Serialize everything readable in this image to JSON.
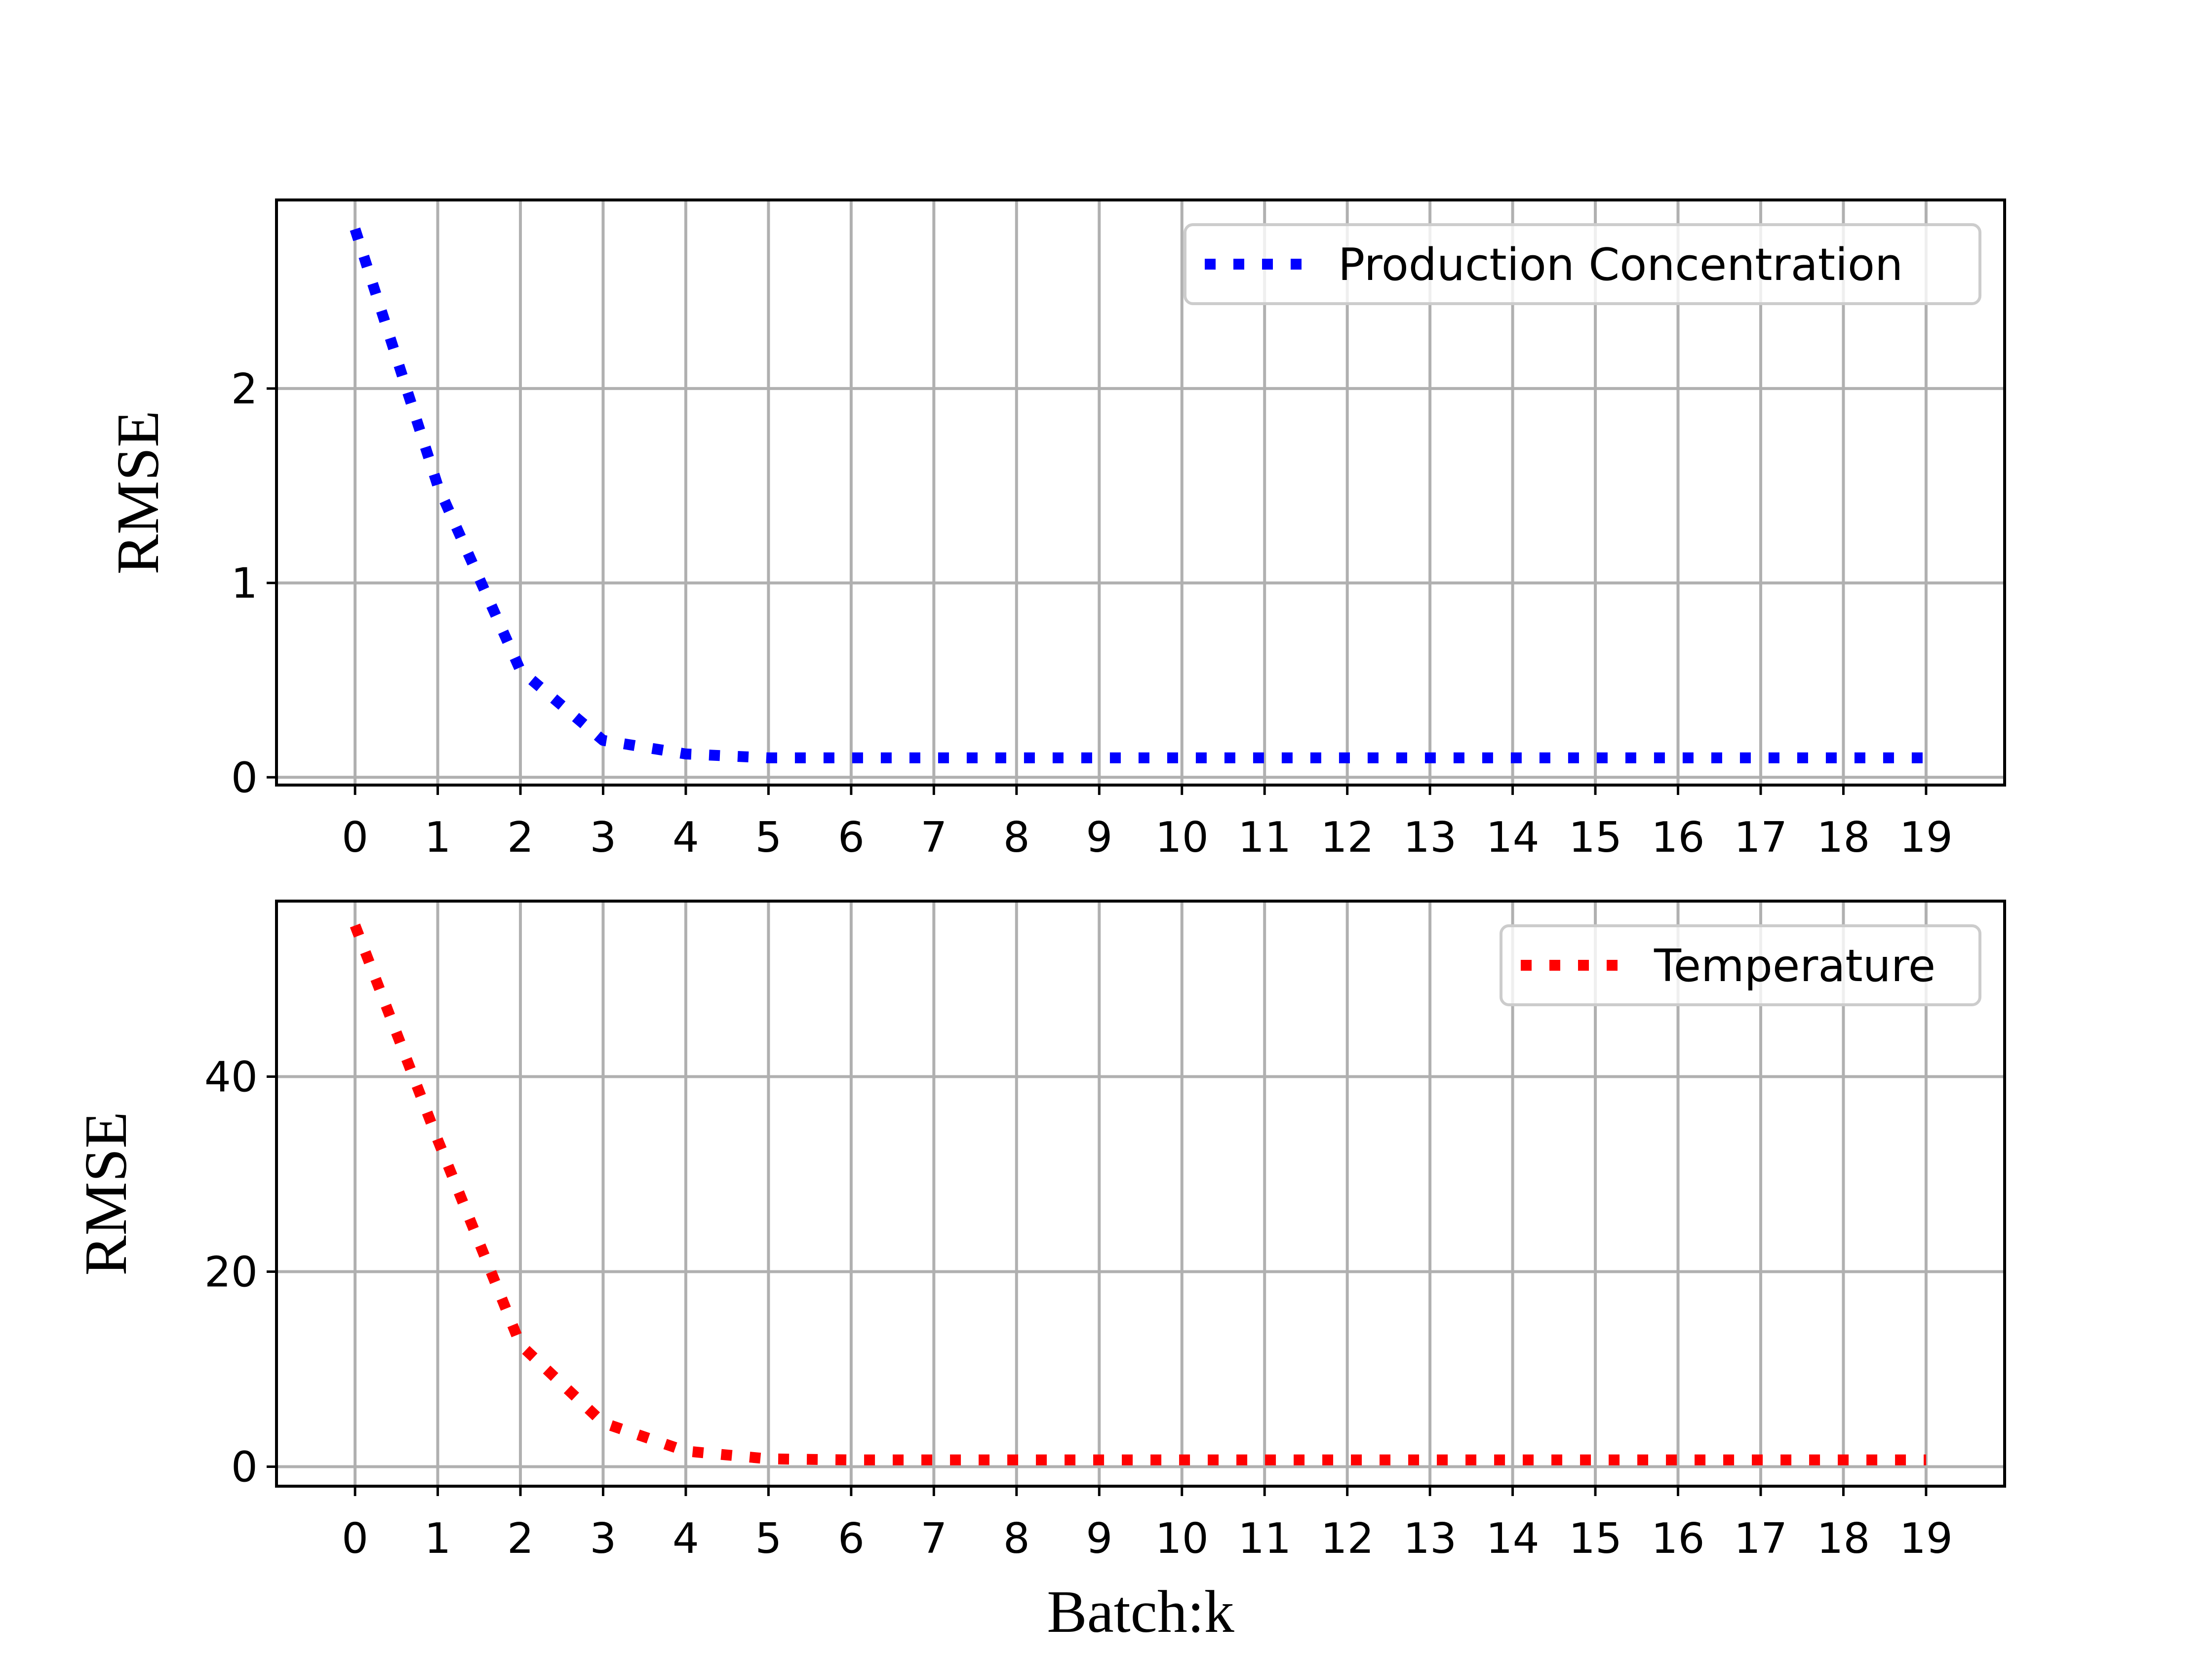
{
  "chart_data": [
    {
      "type": "line",
      "xlabel": "Batch:k",
      "ylabel": "RMSE",
      "x": [
        0,
        1,
        2,
        3,
        4,
        5,
        6,
        7,
        8,
        9,
        10,
        11,
        12,
        13,
        14,
        15,
        16,
        17,
        18,
        19
      ],
      "xticks": [
        "0",
        "1",
        "2",
        "3",
        "4",
        "5",
        "6",
        "7",
        "8",
        "9",
        "10",
        "11",
        "12",
        "13",
        "14",
        "15",
        "16",
        "17",
        "18",
        "19"
      ],
      "yticks": [
        0,
        1,
        2
      ],
      "ylim": [
        -0.04,
        2.97
      ],
      "xlim": [
        -0.95,
        19.95
      ],
      "grid": true,
      "legend_position": "top-right",
      "series": [
        {
          "name": "Production Concentration",
          "color": "#0000ff",
          "linestyle": "dotted",
          "values": [
            2.82,
            1.5,
            0.55,
            0.19,
            0.12,
            0.1,
            0.1,
            0.1,
            0.1,
            0.1,
            0.1,
            0.1,
            0.1,
            0.1,
            0.1,
            0.1,
            0.1,
            0.1,
            0.1,
            0.1
          ]
        }
      ]
    },
    {
      "type": "line",
      "xlabel": "Batch:k",
      "ylabel": "RMSE",
      "x": [
        0,
        1,
        2,
        3,
        4,
        5,
        6,
        7,
        8,
        9,
        10,
        11,
        12,
        13,
        14,
        15,
        16,
        17,
        18,
        19
      ],
      "xticks": [
        "0",
        "1",
        "2",
        "3",
        "4",
        "5",
        "6",
        "7",
        "8",
        "9",
        "10",
        "11",
        "12",
        "13",
        "14",
        "15",
        "16",
        "17",
        "18",
        "19"
      ],
      "yticks": [
        0,
        20,
        40
      ],
      "ylim": [
        -2,
        58
      ],
      "xlim": [
        -0.95,
        19.95
      ],
      "grid": true,
      "legend_position": "top-right",
      "series": [
        {
          "name": "Temperature",
          "color": "#ff0000",
          "linestyle": "dotted",
          "values": [
            55.5,
            33.5,
            12.5,
            4.5,
            1.6,
            0.8,
            0.7,
            0.7,
            0.7,
            0.7,
            0.7,
            0.7,
            0.7,
            0.7,
            0.7,
            0.7,
            0.7,
            0.7,
            0.7,
            0.7
          ]
        }
      ]
    }
  ]
}
